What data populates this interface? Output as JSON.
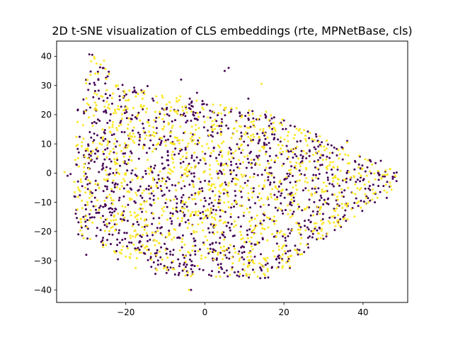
{
  "chart_data": {
    "type": "scatter",
    "title": "2D t-SNE visualization of CLS embeddings (rte, MPNetBase, cls)",
    "xlabel": "",
    "ylabel": "",
    "xlim": [
      -37.5,
      51.3
    ],
    "ylim": [
      -44.3,
      45.2
    ],
    "x_ticks": [
      -20,
      0,
      20,
      40
    ],
    "y_ticks": [
      -40,
      -30,
      -20,
      -10,
      0,
      10,
      20,
      30,
      40
    ],
    "x_tick_labels": [
      "−20",
      "0",
      "20",
      "40"
    ],
    "y_tick_labels": [
      "−40",
      "−30",
      "−20",
      "−10",
      "0",
      "10",
      "20",
      "30",
      "40"
    ],
    "grid": false,
    "legend": "none",
    "point_count_per_class": 1240,
    "series": [
      {
        "class_label": 0,
        "color": "#440154",
        "seed": 11,
        "anchors": [
          [
            -28.5,
            40.5
          ],
          [
            -26.5,
            36.2
          ],
          [
            -24.6,
            33.1
          ],
          [
            -30.0,
            21.5
          ],
          [
            -26.8,
            25.5
          ],
          [
            -14.5,
            29.8
          ],
          [
            -6.0,
            32.0
          ],
          [
            -2.0,
            27.5
          ],
          [
            6.0,
            36.0
          ],
          [
            11.0,
            25.5
          ],
          [
            20.0,
            18.0
          ],
          [
            28.2,
            12.5
          ],
          [
            36.0,
            11.0
          ],
          [
            44.5,
            4.2
          ],
          [
            48.5,
            0.2
          ],
          [
            46.0,
            -8.5
          ],
          [
            43.0,
            -10.0
          ],
          [
            35.0,
            -15.0
          ],
          [
            30.0,
            -22.5
          ],
          [
            21.5,
            -32.5
          ],
          [
            14.0,
            -36.0
          ],
          [
            -3.5,
            -40.0
          ],
          [
            -12.5,
            -34.5
          ],
          [
            -22.0,
            -29.5
          ],
          [
            -30.0,
            -28.0
          ],
          [
            -32.0,
            -21.0
          ],
          [
            -33.0,
            -8.0
          ],
          [
            -30.5,
            5.5
          ],
          [
            -28.0,
            13.5
          ],
          [
            5.0,
            35.0
          ]
        ]
      },
      {
        "class_label": 1,
        "color": "#fde725",
        "seed": 29,
        "anchors": [
          [
            -28.0,
            39.8
          ],
          [
            -25.5,
            38.5
          ],
          [
            -22.0,
            30.0
          ],
          [
            -35.5,
            0.3
          ],
          [
            -33.0,
            -3.0
          ],
          [
            -31.0,
            -12.0
          ],
          [
            14.3,
            30.6
          ],
          [
            21.5,
            -32.0
          ],
          [
            -4.0,
            -40.0
          ],
          [
            -17.5,
            -32.5
          ],
          [
            36.0,
            10.5
          ],
          [
            39.0,
            6.0
          ],
          [
            45.8,
            -4.0
          ],
          [
            30.0,
            -17.0
          ],
          [
            8.0,
            17.5
          ],
          [
            -10.5,
            15.0
          ],
          [
            -3.0,
            -25.0
          ],
          [
            15.5,
            21.0
          ],
          [
            -20.0,
            0.0
          ],
          [
            25.0,
            7.5
          ]
        ]
      }
    ]
  }
}
